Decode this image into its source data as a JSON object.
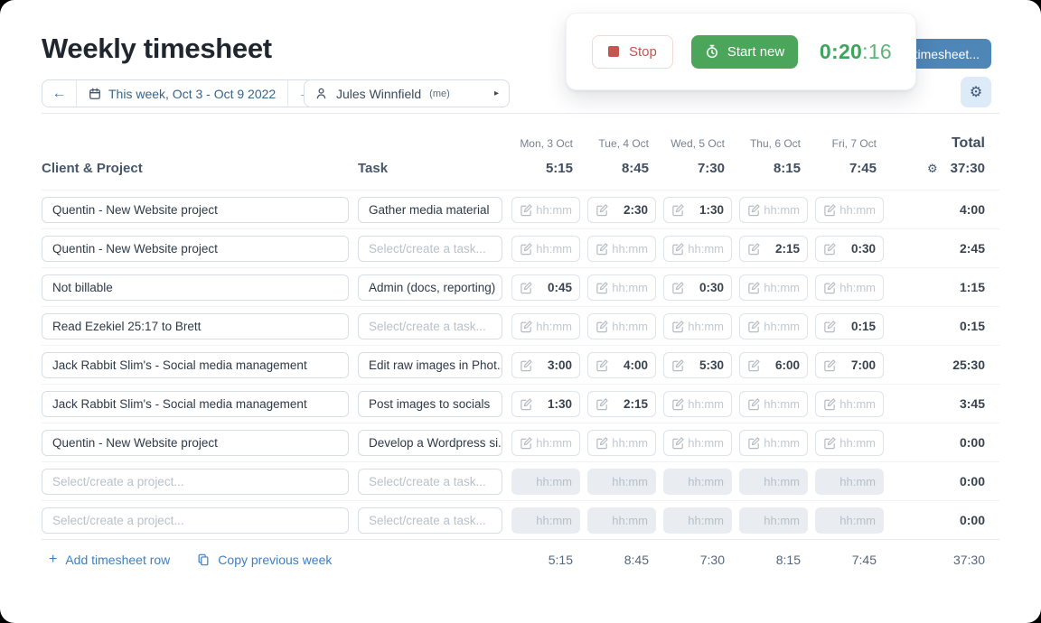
{
  "page": {
    "title": "Weekly timesheet"
  },
  "week_nav": {
    "prev_icon": "←",
    "label": "This week, Oct 3 - Oct 9 2022",
    "next_icon": "→"
  },
  "person_picker": {
    "name": "Jules Winnfield",
    "suffix": "(me)",
    "caret": "▸"
  },
  "timer_card": {
    "stop_label": "Stop",
    "start_new_label": "Start new",
    "time_main": "0:20",
    "time_seconds": ":16"
  },
  "timesheet_button": {
    "label": "timesheet..."
  },
  "icons": {
    "gear": "⚙",
    "plus": "+"
  },
  "table": {
    "col_client": "Client & Project",
    "col_task": "Task",
    "total_label": "Total",
    "grand_total": "37:30",
    "days": [
      {
        "label": "Mon, 3 Oct",
        "total": "5:15"
      },
      {
        "label": "Tue, 4 Oct",
        "total": "8:45"
      },
      {
        "label": "Wed, 5 Oct",
        "total": "7:30"
      },
      {
        "label": "Thu, 6 Oct",
        "total": "8:15"
      },
      {
        "label": "Fri, 7 Oct",
        "total": "7:45"
      }
    ],
    "placeholders": {
      "project": "Select/create a project...",
      "task": "Select/create a task...",
      "time": "hh:mm"
    }
  },
  "rows": [
    {
      "project": "Quentin - New Website project",
      "task": "Gather media material",
      "times": [
        "",
        "2:30",
        "1:30",
        "",
        ""
      ],
      "total": "4:00",
      "disabled": false
    },
    {
      "project": "Quentin - New Website project",
      "task": "",
      "times": [
        "",
        "",
        "",
        "2:15",
        "0:30"
      ],
      "total": "2:45",
      "disabled": false
    },
    {
      "project": "Not billable",
      "task": "Admin (docs, reporting)",
      "times": [
        "0:45",
        "",
        "0:30",
        "",
        ""
      ],
      "total": "1:15",
      "disabled": false
    },
    {
      "project": "Read Ezekiel 25:17 to Brett",
      "task": "",
      "times": [
        "",
        "",
        "",
        "",
        "0:15"
      ],
      "total": "0:15",
      "disabled": false
    },
    {
      "project": "Jack Rabbit Slim's - Social media management",
      "task": "Edit raw images in Phot...",
      "times": [
        "3:00",
        "4:00",
        "5:30",
        "6:00",
        "7:00"
      ],
      "total": "25:30",
      "disabled": false
    },
    {
      "project": "Jack Rabbit Slim's - Social media management",
      "task": "Post images to socials",
      "times": [
        "1:30",
        "2:15",
        "",
        "",
        ""
      ],
      "total": "3:45",
      "disabled": false
    },
    {
      "project": "Quentin - New Website project",
      "task": "Develop a Wordpress si...",
      "times": [
        "",
        "",
        "",
        "",
        ""
      ],
      "total": "0:00",
      "disabled": false
    },
    {
      "project": "",
      "task": "",
      "times": [
        "",
        "",
        "",
        "",
        ""
      ],
      "total": "0:00",
      "disabled": true
    },
    {
      "project": "",
      "task": "",
      "times": [
        "",
        "",
        "",
        "",
        ""
      ],
      "total": "0:00",
      "disabled": true
    }
  ],
  "footer": {
    "add_row_label": "Add timesheet row",
    "copy_week_label": "Copy previous week",
    "day_totals": [
      "5:15",
      "8:45",
      "7:30",
      "8:15",
      "7:45"
    ],
    "total": "37:30"
  }
}
